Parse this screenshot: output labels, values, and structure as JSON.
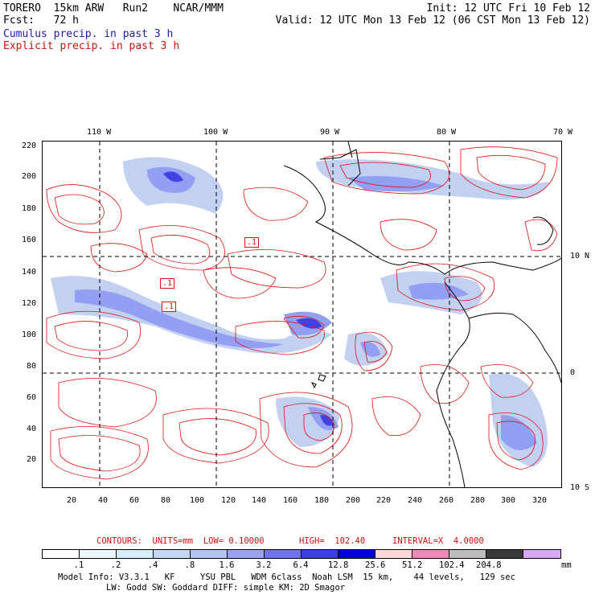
{
  "header": {
    "line1_left": "TORERO  15km ARW   Run2    NCAR/MMM",
    "line1_right": "Init: 12 UTC Fri 10 Feb 12",
    "line2_left": "Fcst:   72 h",
    "line2_right": "Valid: 12 UTC Mon 13 Feb 12 (06 CST Mon 13 Feb 12)",
    "cumulus": "Cumulus precip. in past 3 h",
    "explicit": "Explicit precip. in past 3 h"
  },
  "map": {
    "lon_labels": [
      "110 W",
      "100 W",
      "90 W",
      "80 W",
      "70 W"
    ],
    "lat_labels": [
      "10 N",
      "0",
      "10 S"
    ],
    "y_ticks": [
      "220",
      "200",
      "180",
      "160",
      "140",
      "120",
      "100",
      "80",
      "60",
      "40",
      "20"
    ],
    "x_ticks": [
      "20",
      "40",
      "60",
      "80",
      "100",
      "120",
      "140",
      "160",
      "180",
      "200",
      "220",
      "240",
      "260",
      "280",
      "300",
      "320"
    ],
    "box_labels": [
      ".1",
      ".1",
      ".1"
    ],
    "colors": {
      "contour": "#e01010",
      "coast": "#000000",
      "light": "#b8c8f0",
      "mid": "#7f8ff0",
      "dark": "#2020e0"
    }
  },
  "contours_info": {
    "units": "CONTOURS:  UNITS=mm  LOW= 0.10000",
    "high": "HIGH=  102.40",
    "interval": "INTERVAL=X  4.0000"
  },
  "colorbar": {
    "colors": [
      "#ffffff",
      "#eef6ff",
      "#d6eefc",
      "#c2d8f4",
      "#b3c3f1",
      "#9aa3f0",
      "#6f73ee",
      "#3b3fea",
      "#0000d8",
      "#ffd8d8",
      "#f088b8",
      "#bdbdbd",
      "#3a3a3a",
      "#d8a8f4"
    ],
    "labels": [
      ".1",
      ".2",
      ".4",
      ".8",
      "1.6",
      "3.2",
      "6.4",
      "12.8",
      "25.6",
      "51.2",
      "102.4",
      "204.8"
    ],
    "unit": "mm"
  },
  "footer": {
    "line1": "Model Info: V3.3.1   KF     YSU PBL   WDM 6class  Noah LSM  15 km,    44 levels,   129 sec",
    "line2": "LW: Godd SW: Goddard DIFF: simple KM: 2D Smagor"
  }
}
